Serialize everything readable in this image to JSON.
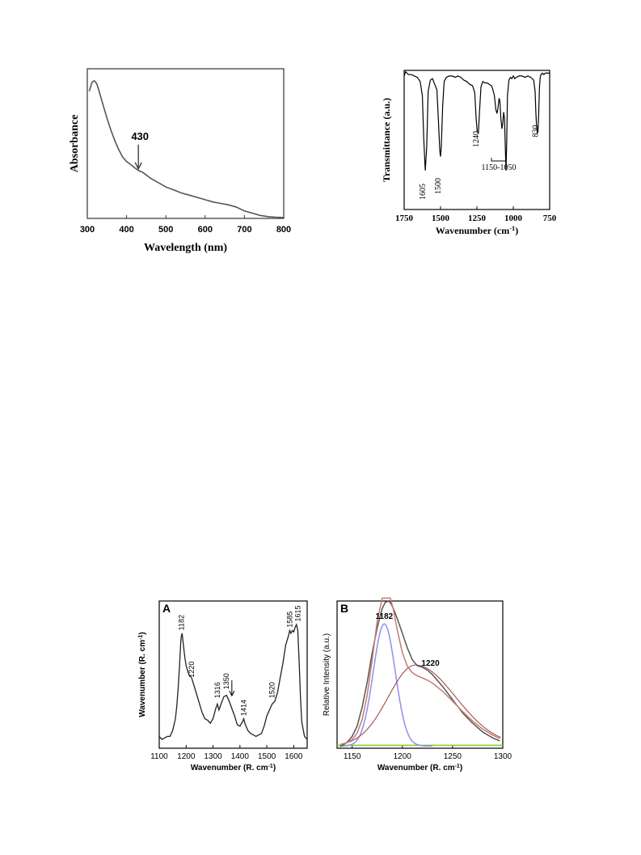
{
  "chart_data": [
    {
      "type": "line",
      "xlabel": "Wavelength (nm)",
      "ylabel": "Absorbance",
      "xlim": [
        300,
        800
      ],
      "ylim": [
        0,
        1
      ],
      "xticks": [
        300,
        400,
        500,
        600,
        700,
        800
      ],
      "grid": false,
      "series": [
        {
          "x": [
            305,
            312,
            318,
            324,
            330,
            340,
            350,
            360,
            370,
            380,
            390,
            400,
            410,
            420,
            430,
            440,
            450,
            460,
            480,
            500,
            520,
            540,
            560,
            580,
            600,
            620,
            640,
            660,
            680,
            700,
            720,
            740,
            760,
            780,
            800
          ],
          "y": [
            0.85,
            0.91,
            0.92,
            0.9,
            0.85,
            0.76,
            0.67,
            0.59,
            0.52,
            0.46,
            0.41,
            0.38,
            0.36,
            0.34,
            0.32,
            0.31,
            0.29,
            0.27,
            0.24,
            0.21,
            0.19,
            0.17,
            0.155,
            0.14,
            0.125,
            0.11,
            0.1,
            0.09,
            0.075,
            0.05,
            0.035,
            0.02,
            0.012,
            0.008,
            0.006
          ]
        }
      ],
      "annotations": [
        {
          "text": "430",
          "x": 430,
          "y": 0.32
        }
      ]
    },
    {
      "type": "line",
      "xlabel": "Wavenumber (cm",
      "xlabel_sup": "-1",
      "xlabel_end": ")",
      "ylabel": "Transmittance (a.u.)",
      "xlim": [
        1750,
        750
      ],
      "ylim": [
        0,
        1
      ],
      "xticks": [
        1750,
        1500,
        1250,
        1000,
        750
      ],
      "grid": false,
      "series": [
        {
          "x": [
            1750,
            1740,
            1720,
            1700,
            1680,
            1660,
            1640,
            1625,
            1615,
            1605,
            1595,
            1585,
            1570,
            1555,
            1540,
            1525,
            1515,
            1505,
            1500,
            1495,
            1485,
            1475,
            1460,
            1440,
            1420,
            1400,
            1380,
            1360,
            1340,
            1320,
            1300,
            1280,
            1265,
            1255,
            1248,
            1240,
            1232,
            1222,
            1210,
            1195,
            1180,
            1165,
            1150,
            1140,
            1130,
            1120,
            1112,
            1105,
            1098,
            1092,
            1085,
            1078,
            1072,
            1066,
            1060,
            1055,
            1050,
            1045,
            1040,
            1030,
            1020,
            1010,
            1000,
            990,
            980,
            960,
            940,
            920,
            900,
            880,
            860,
            850,
            845,
            840,
            835,
            830,
            825,
            820,
            815,
            810,
            800,
            790,
            780,
            770,
            760,
            750
          ],
          "y": [
            0.96,
            0.99,
            0.97,
            0.97,
            0.96,
            0.95,
            0.92,
            0.82,
            0.5,
            0.28,
            0.45,
            0.85,
            0.93,
            0.94,
            0.9,
            0.86,
            0.65,
            0.42,
            0.38,
            0.45,
            0.75,
            0.92,
            0.95,
            0.96,
            0.96,
            0.95,
            0.96,
            0.95,
            0.93,
            0.92,
            0.9,
            0.89,
            0.84,
            0.65,
            0.56,
            0.55,
            0.7,
            0.88,
            0.92,
            0.91,
            0.91,
            0.9,
            0.89,
            0.86,
            0.82,
            0.72,
            0.69,
            0.73,
            0.8,
            0.78,
            0.65,
            0.58,
            0.62,
            0.7,
            0.65,
            0.45,
            0.28,
            0.5,
            0.82,
            0.93,
            0.95,
            0.94,
            0.96,
            0.94,
            0.95,
            0.96,
            0.96,
            0.95,
            0.96,
            0.95,
            0.93,
            0.85,
            0.7,
            0.6,
            0.55,
            0.56,
            0.7,
            0.88,
            0.95,
            0.97,
            0.98,
            0.97,
            0.98,
            0.98,
            0.98,
            0.98
          ]
        }
      ],
      "annotations": [
        {
          "text": "1605",
          "x": 1605
        },
        {
          "text": "1500",
          "x": 1500
        },
        {
          "text": "1240",
          "x": 1240
        },
        {
          "text": "1150-1050",
          "x": 1100
        },
        {
          "text": "830",
          "x": 830
        }
      ]
    },
    {
      "type": "line",
      "panel_label": "A",
      "xlabel": "Wavenumber (R. cm",
      "xlabel_sup": "-1",
      "xlabel_end": ")",
      "ylabel": "Wavenumber (R. cm",
      "ylabel_sup": "-1",
      "ylabel_end": ")",
      "xlim": [
        1100,
        1650
      ],
      "ylim": [
        0,
        1
      ],
      "xticks": [
        1100,
        1200,
        1300,
        1400,
        1500,
        1600
      ],
      "grid": false,
      "series": [
        {
          "x": [
            1100,
            1110,
            1120,
            1130,
            1140,
            1150,
            1160,
            1165,
            1170,
            1175,
            1180,
            1182,
            1185,
            1190,
            1195,
            1200,
            1210,
            1220,
            1230,
            1240,
            1250,
            1260,
            1270,
            1280,
            1290,
            1300,
            1310,
            1316,
            1322,
            1330,
            1340,
            1350,
            1360,
            1370,
            1380,
            1390,
            1400,
            1410,
            1414,
            1420,
            1430,
            1440,
            1450,
            1460,
            1470,
            1480,
            1490,
            1500,
            1510,
            1520,
            1530,
            1540,
            1550,
            1560,
            1570,
            1580,
            1585,
            1590,
            1595,
            1600,
            1605,
            1610,
            1615,
            1620,
            1625,
            1630,
            1640,
            1650
          ],
          "y": [
            0.08,
            0.06,
            0.07,
            0.08,
            0.08,
            0.12,
            0.2,
            0.28,
            0.4,
            0.55,
            0.72,
            0.76,
            0.78,
            0.7,
            0.62,
            0.56,
            0.5,
            0.48,
            0.42,
            0.36,
            0.3,
            0.24,
            0.2,
            0.19,
            0.17,
            0.2,
            0.27,
            0.3,
            0.26,
            0.3,
            0.35,
            0.36,
            0.32,
            0.27,
            0.22,
            0.16,
            0.15,
            0.18,
            0.2,
            0.16,
            0.12,
            0.1,
            0.09,
            0.08,
            0.09,
            0.1,
            0.15,
            0.22,
            0.26,
            0.3,
            0.32,
            0.38,
            0.48,
            0.58,
            0.7,
            0.76,
            0.8,
            0.78,
            0.8,
            0.79,
            0.82,
            0.84,
            0.8,
            0.6,
            0.35,
            0.18,
            0.08,
            0.06
          ]
        }
      ],
      "annotations": [
        {
          "text": "1182",
          "x": 1182
        },
        {
          "text": "1220",
          "x": 1220
        },
        {
          "text": "1316",
          "x": 1316
        },
        {
          "text": "1350",
          "x": 1350
        },
        {
          "text": "1414",
          "x": 1414
        },
        {
          "text": "1520",
          "x": 1520
        },
        {
          "text": "1585",
          "x": 1585
        },
        {
          "text": "1615",
          "x": 1615
        }
      ]
    },
    {
      "type": "line",
      "panel_label": "B",
      "xlabel": "Wavenumber (R. cm",
      "xlabel_sup": "-1",
      "xlabel_end": ")",
      "ylabel": "Relative Intensity (a.u.)",
      "xlim": [
        1135,
        1300
      ],
      "ylim": [
        0,
        1
      ],
      "xticks": [
        1150,
        1200,
        1250,
        1300
      ],
      "grid": false,
      "colors": {
        "measured": "#555555",
        "fit": "#c67a73",
        "peak1182": "#8f8df0",
        "peak1220": "#a65a55",
        "baseline": "#7ed321"
      },
      "series": [
        {
          "key": "measured",
          "type": "sampled"
        },
        {
          "key": "fit",
          "type": "sampled"
        },
        {
          "key": "peak1182",
          "center": 1182,
          "amplitude": 0.83,
          "sigma": 11
        },
        {
          "key": "peak1220",
          "center": 1213,
          "amplitude": 0.55,
          "sigma_left": 27,
          "sigma_right": 40
        },
        {
          "key": "baseline",
          "value": 0.02
        }
      ],
      "measured_points": {
        "x": [
          1138,
          1145,
          1150,
          1155,
          1160,
          1165,
          1170,
          1175,
          1180,
          1183,
          1186,
          1188,
          1191,
          1195,
          1200,
          1205,
          1210,
          1215,
          1220,
          1225,
          1230,
          1240,
          1250,
          1260,
          1270,
          1280,
          1290,
          1297
        ],
        "y": [
          0.01,
          0.04,
          0.08,
          0.15,
          0.28,
          0.45,
          0.65,
          0.82,
          0.95,
          0.99,
          1.0,
          0.99,
          0.95,
          0.88,
          0.78,
          0.68,
          0.6,
          0.56,
          0.55,
          0.53,
          0.5,
          0.42,
          0.33,
          0.24,
          0.17,
          0.11,
          0.07,
          0.05
        ]
      },
      "annotations": [
        {
          "text": "1182",
          "x": 1182
        },
        {
          "text": "1220",
          "x": 1220
        }
      ]
    }
  ]
}
